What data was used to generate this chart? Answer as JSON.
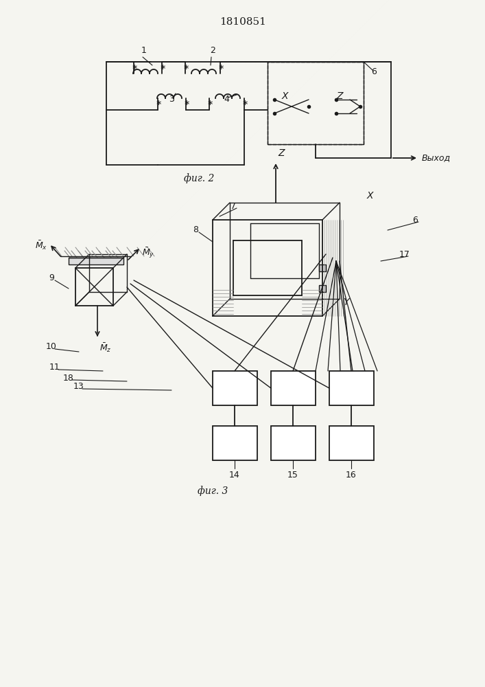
{
  "title": "1810851",
  "fig2_caption": "фиг. 2",
  "fig3_caption": "фиг. 3",
  "background_color": "#f5f5f0",
  "line_color": "#1a1a1a",
  "fig_width": 7.07,
  "fig_height": 10.0
}
